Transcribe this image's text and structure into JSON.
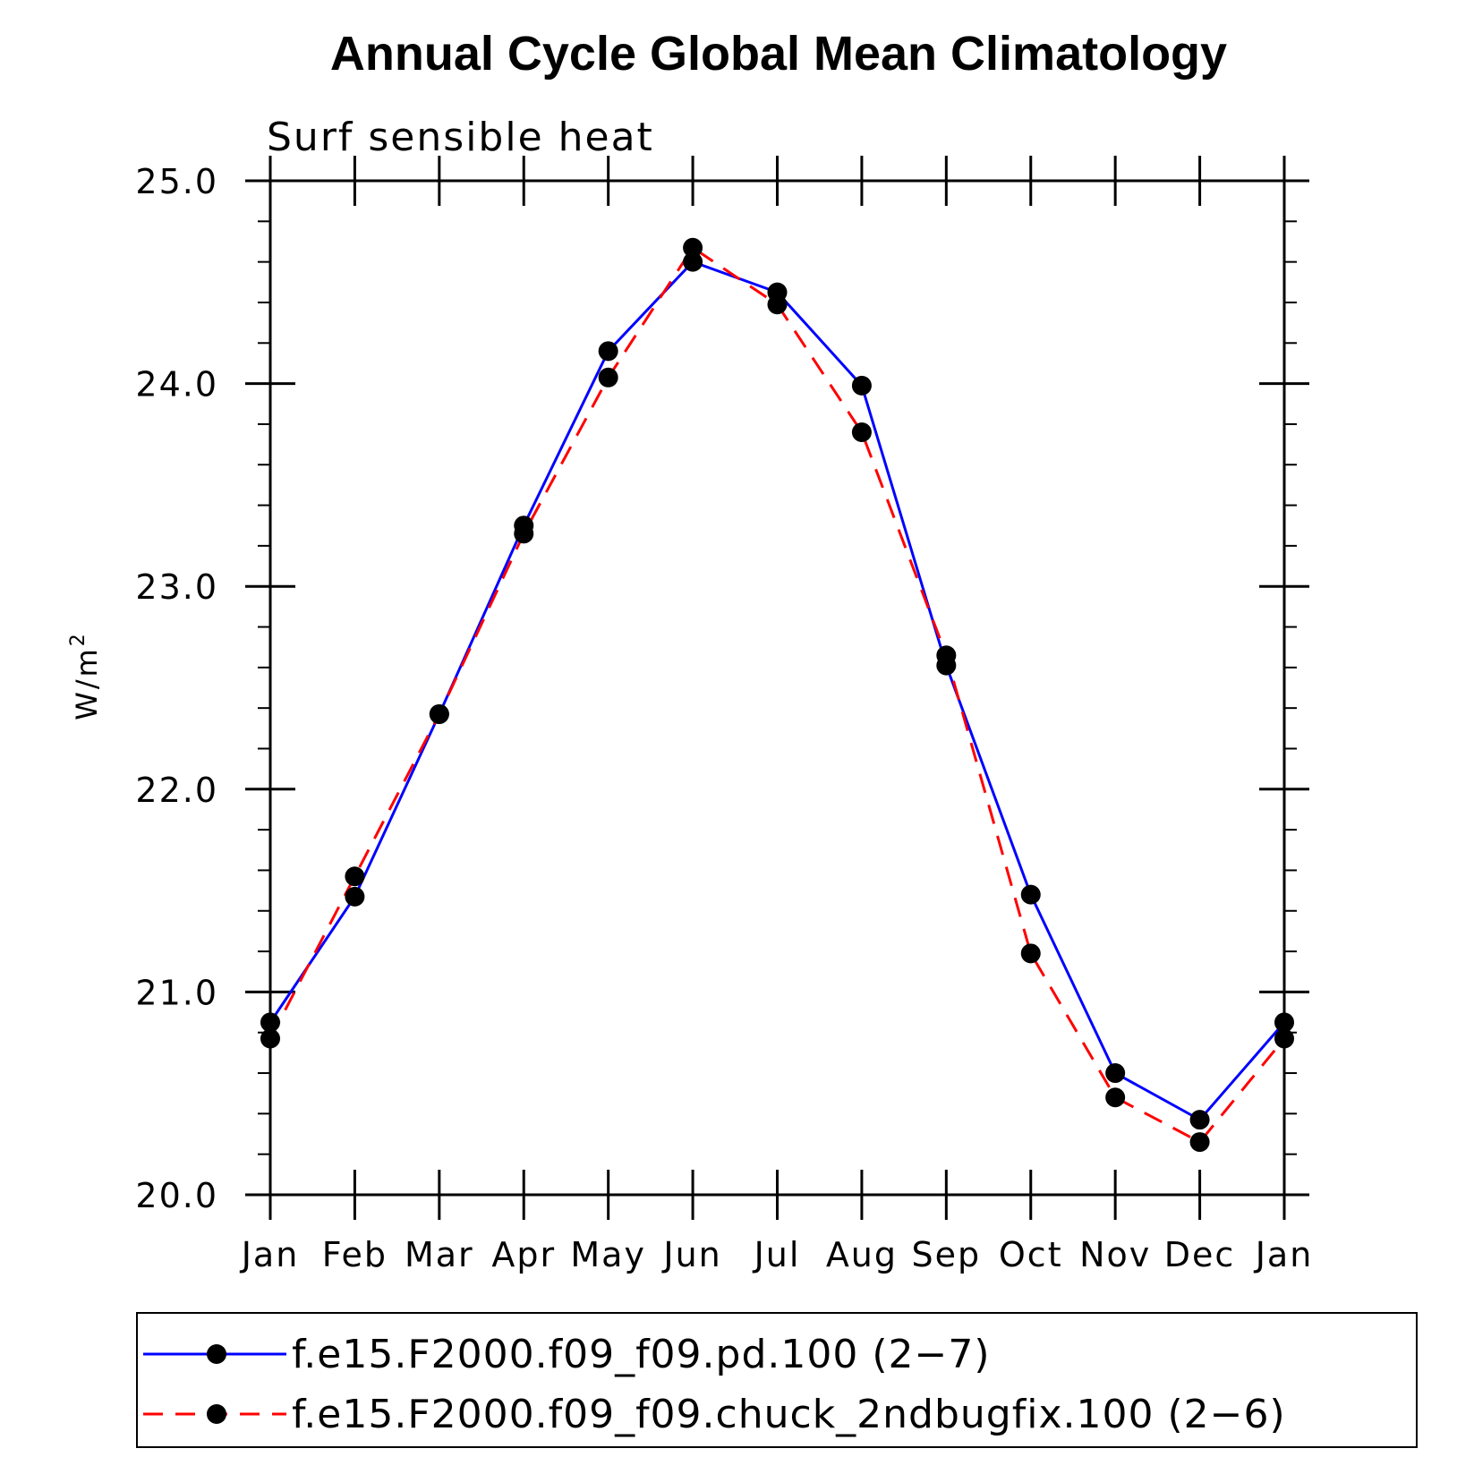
{
  "chart_data": {
    "type": "line",
    "title": "Annual Cycle Global Mean Climatology",
    "subtitle": "Surf sensible heat",
    "ylabel": "W/m",
    "ylabel_superscript": "2",
    "xlabel": "",
    "categories": [
      "Jan",
      "Feb",
      "Mar",
      "Apr",
      "May",
      "Jun",
      "Jul",
      "Aug",
      "Sep",
      "Oct",
      "Nov",
      "Dec",
      "Jan"
    ],
    "ylim": [
      20.0,
      25.0
    ],
    "yticks": [
      "20.0",
      "21.0",
      "22.0",
      "23.0",
      "24.0",
      "25.0"
    ],
    "grid": false,
    "legend_position": "bottom",
    "series": [
      {
        "name": "f.e15.F2000.f09_f09.pd.100 (2−7)",
        "color": "#0000ff",
        "dash": "solid",
        "values": [
          20.85,
          21.47,
          22.37,
          23.3,
          24.16,
          24.6,
          24.45,
          23.99,
          22.61,
          21.48,
          20.6,
          20.37,
          20.85
        ]
      },
      {
        "name": "f.e15.F2000.f09_f09.chuck_2ndbugfix.100 (2−6)",
        "color": "#ff0000",
        "dash": "dashed",
        "values": [
          20.77,
          21.57,
          22.37,
          23.26,
          24.03,
          24.67,
          24.39,
          23.76,
          22.66,
          21.19,
          20.48,
          20.26,
          20.77
        ]
      }
    ]
  }
}
